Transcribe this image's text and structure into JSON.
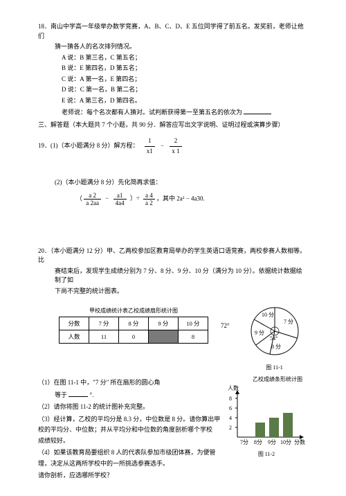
{
  "q18": {
    "stem": "18．南山中学高一年级举办数学竞赛，A、B、C、D、E 五位同学得了前五名。发奖前，老师让他们",
    "stem2": "猜一猜各人的名次排列情况。",
    "A": "A 说：B 第三名，C 第五名；",
    "B": "B 说：E 第四名，D 第五名；",
    "C": "C 说：A 第一名，E 第四名；",
    "D": "D 说：C 第一名，B 第二名；",
    "E": "E 说：A 第三名，D 第四名。",
    "teacher": "老师说：每个名次都有人猜对。试判断获得第一至第五名的依次为",
    "blank": "______"
  },
  "section3": "三、解答题（本大题共 7 个小题，共 90 分．解答应写出文字说明、证明过程或演算步骤）",
  "q19": {
    "label1": "19．(1)（本小题满分 8 分）解方程：",
    "f1n": "1",
    "f1d": "x1",
    "f2n": "2",
    "f2d": "x   1",
    "label2": "(2)（本小题满分 8 分）先化简再求值：",
    "exprL": "（",
    "fa_n": "a    2",
    "fa_d": "a    2aa",
    "fb_n": "a1",
    "fb_d": "4a4",
    "mid": "）÷",
    "fc_n": "a    4",
    "fc_d": "a    2",
    "tail": "，其中 2a² − 4a30."
  },
  "q20": {
    "stem1": "20．（本小题满分 12 分）甲、乙两校参加区教育局举办的学生英语口语竞赛，两校参赛人数相等。比",
    "stem2": "赛结束后，发现学生成绩分别为 7 分、8 分、9 分、10 分（满分为 10 分）。依据统计数据绘制了如",
    "stem3": "下尚不完整的统计图表。",
    "tableTitle": "甲校成绩统计表乙校成绩扇形统计图",
    "hdr": [
      "分数",
      "7 分",
      "8 分",
      "9 分",
      "10 分"
    ],
    "row": [
      "人数",
      "11",
      "0",
      "",
      "8"
    ],
    "angle": "72°",
    "pie": {
      "p10": "10 分",
      "p7": "7 分",
      "p9": "9 分",
      "p54": "54°",
      "p8": "8 分"
    },
    "pieCaption": "图 11-1",
    "sub1a": "（1）在图 11-1 中，\"7 分\" 所在扇形的圆心角",
    "sub1b": "等于",
    "sub1c": "°.",
    "sub2": "（2）请你将图 11-2 的统计图补充完整。",
    "sub3a": "（3）经计算，乙校的平均分是 8.3 分，中位数是 8 分。请你算出甲",
    "sub3b": "校的平均分、中位数；并从平均分和中位数的角度剖析哪个学校",
    "sub3c": "成绩较好。",
    "sub4a": "（4）如果该教育局要组织 8 人的代表队参加市级团体赛，为便管",
    "sub4b": "理，决定从这两所学校中的一所挑选参赛选手。",
    "sub4c": "请你剖析，应选哪所学校？",
    "barTitle": "乙校成绩条形统计图",
    "barY": "人数",
    "barX": [
      "7分",
      "8分",
      "9分",
      "10分",
      "分数"
    ],
    "barCaption": "图 11-2",
    "barYticks": [
      "8",
      "6",
      "4",
      "2"
    ],
    "barHeights": [
      0,
      3,
      4,
      5
    ],
    "barColor": "#5a7a48"
  }
}
